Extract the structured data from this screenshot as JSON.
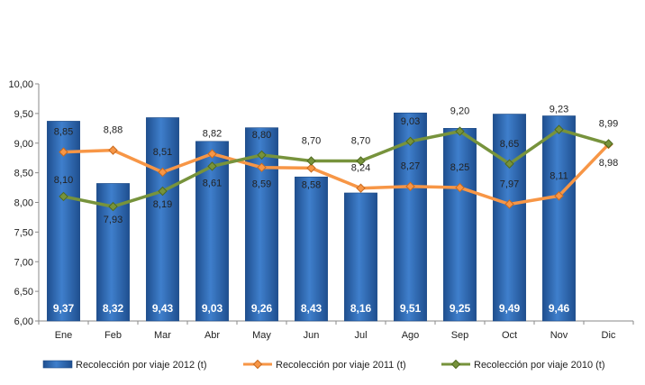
{
  "chart_data": {
    "type": "bar",
    "categories": [
      "Ene",
      "Feb",
      "Mar",
      "Abr",
      "May",
      "Jun",
      "Jul",
      "Ago",
      "Sep",
      "Oct",
      "Nov",
      "Dic"
    ],
    "ylim": [
      6.0,
      10.0
    ],
    "yticks": [
      "6,00",
      "6,50",
      "7,00",
      "7,50",
      "8,00",
      "8,50",
      "9,00",
      "9,50",
      "10,00"
    ],
    "grid": false,
    "legend_position": "bottom",
    "series": [
      {
        "name": "Recolección por viaje 2012 (t)",
        "kind": "bar",
        "color": "#2f6db8",
        "values": [
          9.37,
          8.32,
          9.43,
          9.03,
          9.26,
          8.43,
          8.16,
          9.51,
          9.25,
          9.49,
          9.46,
          null
        ],
        "labels": [
          "9,37",
          "8,32",
          "9,43",
          "9,03",
          "9,26",
          "8,43",
          "8,16",
          "9,51",
          "9,25",
          "9,49",
          "9,46",
          ""
        ]
      },
      {
        "name": "Recolección por viaje 2011 (t)",
        "kind": "line",
        "color": "#f79646",
        "values": [
          8.85,
          8.88,
          8.51,
          8.82,
          8.59,
          8.58,
          8.24,
          8.27,
          8.25,
          7.97,
          8.11,
          8.98
        ],
        "labels": [
          "8,85",
          "8,88",
          "8,51",
          "8,82",
          "8,59",
          "8,58",
          "8,24",
          "8,27",
          "8,25",
          "7,97",
          "8,11",
          "8,98"
        ]
      },
      {
        "name": "Recolección por viaje 2010 (t)",
        "kind": "line",
        "color": "#77933c",
        "values": [
          8.1,
          7.93,
          8.19,
          8.61,
          8.8,
          8.7,
          8.7,
          9.03,
          9.2,
          8.65,
          9.23,
          8.99
        ],
        "labels": [
          "8,10",
          "7,93",
          "8,19",
          "8,61",
          "8,80",
          "8,70",
          "8,70",
          "9,03",
          "9,20",
          "8,65",
          "9,23",
          "8,99"
        ]
      }
    ]
  }
}
